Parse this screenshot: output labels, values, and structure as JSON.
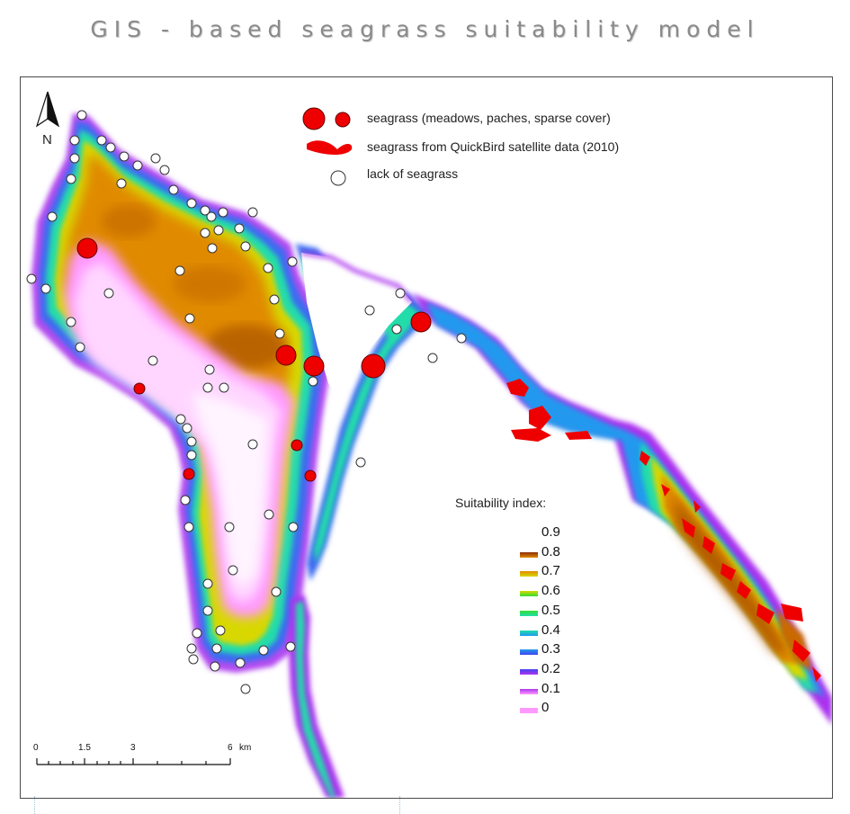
{
  "title": "GIS - based seagrass suitability model",
  "north_arrow": {
    "label": "N",
    "icon": "north-arrow-icon"
  },
  "legend": {
    "items": [
      {
        "label": "seagrass (meadows, paches, sparse cover)",
        "symbol": "red-circles",
        "color": "#ff0000"
      },
      {
        "label": "seagrass from QuickBird satellite data (2010)",
        "symbol": "red-polygons",
        "color": "#ff0000"
      },
      {
        "label": "lack of seagrass",
        "symbol": "white-circle",
        "color": "#ffffff"
      }
    ]
  },
  "suitability": {
    "title": "Suitability index:",
    "classes": [
      {
        "label": "0.9",
        "color": null
      },
      {
        "label": "0.8",
        "color": "#8b2d00"
      },
      {
        "label": "0.7",
        "color": "#e08a00"
      },
      {
        "label": "0.6",
        "color": "#d8d800"
      },
      {
        "label": "0.5",
        "color": "#33dd33"
      },
      {
        "label": "0.4",
        "color": "#22ddaa"
      },
      {
        "label": "0.3",
        "color": "#2299ee"
      },
      {
        "label": "0.2",
        "color": "#4444ee"
      },
      {
        "label": "0.1",
        "color": "#aa33ee"
      },
      {
        "label": "0",
        "color": "#ff99ff"
      }
    ]
  },
  "scale_bar": {
    "ticks": [
      "0",
      "1.5",
      "3",
      "6"
    ],
    "unit": "km"
  }
}
